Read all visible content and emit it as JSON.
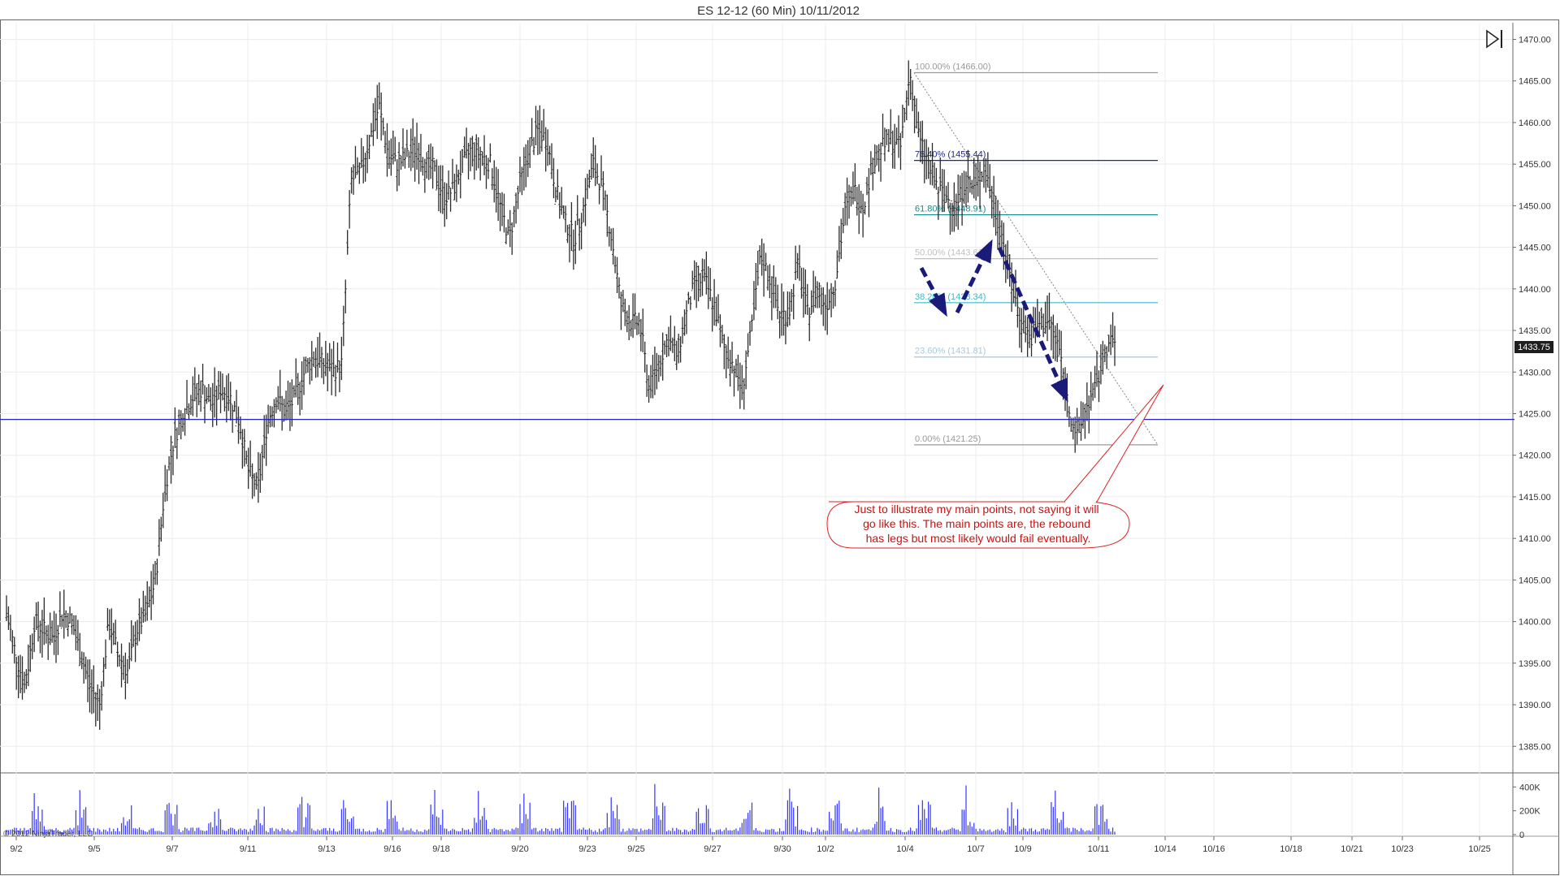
{
  "chart_data": {
    "type": "ohlc",
    "title": "ES 12-12 (60 Min)  10/11/2012",
    "ylim": [
      1382,
      1472
    ],
    "y_ticks": [
      "1385.00",
      "1390.00",
      "1395.00",
      "1400.00",
      "1405.00",
      "1410.00",
      "1415.00",
      "1420.00",
      "1425.00",
      "1430.00",
      "1435.00",
      "1440.00",
      "1445.00",
      "1450.00",
      "1455.00",
      "1460.00",
      "1465.00",
      "1470.00"
    ],
    "x_ticks": [
      "9/2",
      "9/5",
      "9/7",
      "9/11",
      "9/13",
      "9/16",
      "9/18",
      "9/20",
      "9/23",
      "9/25",
      "9/27",
      "9/30",
      "10/2",
      "10/4",
      "10/7",
      "10/9",
      "10/11",
      "10/14",
      "10/16",
      "10/18",
      "10/21",
      "10/23",
      "10/25"
    ],
    "last_price": "1433.75",
    "horizontal_line": 1424.3,
    "price_path": [
      [
        0,
        1401
      ],
      [
        1,
        1396
      ],
      [
        2,
        1392
      ],
      [
        3,
        1400
      ],
      [
        4,
        1399
      ],
      [
        5,
        1398
      ],
      [
        6,
        1401
      ],
      [
        7,
        1400
      ],
      [
        8,
        1396
      ],
      [
        9,
        1392
      ],
      [
        10,
        1390
      ],
      [
        11,
        1400
      ],
      [
        12,
        1396
      ],
      [
        13,
        1394
      ],
      [
        14,
        1399
      ],
      [
        15,
        1401
      ],
      [
        16,
        1405
      ],
      [
        17,
        1416
      ],
      [
        18,
        1422
      ],
      [
        19,
        1425
      ],
      [
        20,
        1427
      ],
      [
        21,
        1428
      ],
      [
        22,
        1426
      ],
      [
        23,
        1428
      ],
      [
        24,
        1427
      ],
      [
        25,
        1424
      ],
      [
        26,
        1418
      ],
      [
        27,
        1416
      ],
      [
        28,
        1424
      ],
      [
        29,
        1427
      ],
      [
        30,
        1425
      ],
      [
        31,
        1427
      ],
      [
        32,
        1430
      ],
      [
        33,
        1432
      ],
      [
        34,
        1431
      ],
      [
        35,
        1430
      ],
      [
        36,
        1431
      ],
      [
        37,
        1453
      ],
      [
        38,
        1454
      ],
      [
        39,
        1458
      ],
      [
        40,
        1462
      ],
      [
        41,
        1456
      ],
      [
        42,
        1455
      ],
      [
        43,
        1456
      ],
      [
        44,
        1457
      ],
      [
        45,
        1455
      ],
      [
        46,
        1454
      ],
      [
        47,
        1451
      ],
      [
        48,
        1452
      ],
      [
        49,
        1455
      ],
      [
        50,
        1457
      ],
      [
        51,
        1456
      ],
      [
        52,
        1455
      ],
      [
        53,
        1450
      ],
      [
        54,
        1446
      ],
      [
        55,
        1452
      ],
      [
        56,
        1456
      ],
      [
        57,
        1459
      ],
      [
        58,
        1458
      ],
      [
        59,
        1452
      ],
      [
        60,
        1448
      ],
      [
        61,
        1446
      ],
      [
        62,
        1450
      ],
      [
        63,
        1455
      ],
      [
        64,
        1452
      ],
      [
        65,
        1446
      ],
      [
        66,
        1438
      ],
      [
        67,
        1436
      ],
      [
        68,
        1436
      ],
      [
        69,
        1428
      ],
      [
        70,
        1431
      ],
      [
        71,
        1434
      ],
      [
        72,
        1432
      ],
      [
        73,
        1437
      ],
      [
        74,
        1441
      ],
      [
        75,
        1441
      ],
      [
        76,
        1438
      ],
      [
        77,
        1433
      ],
      [
        78,
        1431
      ],
      [
        79,
        1428
      ],
      [
        80,
        1435
      ],
      [
        81,
        1444
      ],
      [
        82,
        1441
      ],
      [
        83,
        1437
      ],
      [
        84,
        1437
      ],
      [
        85,
        1443
      ],
      [
        86,
        1437
      ],
      [
        87,
        1440
      ],
      [
        88,
        1438
      ],
      [
        89,
        1441
      ],
      [
        90,
        1449
      ],
      [
        91,
        1452
      ],
      [
        92,
        1450
      ],
      [
        93,
        1455
      ],
      [
        94,
        1457
      ],
      [
        95,
        1458
      ],
      [
        96,
        1457
      ],
      [
        97,
        1466
      ],
      [
        98,
        1458
      ],
      [
        99,
        1455
      ],
      [
        100,
        1452
      ],
      [
        101,
        1451
      ],
      [
        102,
        1450
      ],
      [
        103,
        1453
      ],
      [
        104,
        1452
      ],
      [
        105,
        1455
      ],
      [
        106,
        1450
      ],
      [
        107,
        1446
      ],
      [
        108,
        1440
      ],
      [
        109,
        1436
      ],
      [
        110,
        1434
      ],
      [
        111,
        1436
      ],
      [
        112,
        1436
      ],
      [
        113,
        1433
      ],
      [
        114,
        1426
      ],
      [
        115,
        1422
      ],
      [
        116,
        1426
      ],
      [
        117,
        1428
      ],
      [
        118,
        1433
      ],
      [
        119,
        1433.75
      ]
    ],
    "fib_levels": [
      {
        "label": "100.00% (1466.00)",
        "value": 1466.0,
        "color": "#9a9a9a"
      },
      {
        "label": "76.40% (1455.44)",
        "value": 1455.44,
        "color": "#1c2a8a"
      },
      {
        "label": "61.80% (1448.91)",
        "value": 1448.91,
        "color": "#138a8a"
      },
      {
        "label": "50.00% (1443.63)",
        "value": 1443.63,
        "color": "#c0c0c0"
      },
      {
        "label": "38.20% (1438.34)",
        "value": 1438.34,
        "color": "#3fb8c8"
      },
      {
        "label": "23.60% (1431.81)",
        "value": 1431.81,
        "color": "#a9c8dc"
      },
      {
        "label": "0.00% (1421.25)",
        "value": 1421.25,
        "color": "#9a9a9a"
      }
    ],
    "volume_ticks": [
      "400K",
      "200K",
      "0"
    ],
    "volume_max": 450000,
    "annotation": "Just to illustrate my main points, not saying it will go like this. The main points are, the rebound has legs but most likely would fail eventually.",
    "annotation_lines": [
      "Just to illustrate my main points, not saying it will",
      "go like this. The main points are, the rebound",
      "has legs but most likely would fail eventually."
    ],
    "projection": [
      [
        1134,
        330
      ],
      [
        1163,
        385
      ],
      [
        1178,
        385
      ],
      [
        1219,
        300
      ],
      [
        1230,
        305
      ],
      [
        1312,
        490
      ]
    ],
    "copyright": "© 2012 NinjaTrader, LLC",
    "colors": {
      "bars": "#2b2b2b",
      "volume": "#3333ff",
      "arrow": "#1a1a7a",
      "hline": "#2222cc",
      "callout": "#dd2222",
      "last_price_bg": "#1e1e1e"
    }
  }
}
